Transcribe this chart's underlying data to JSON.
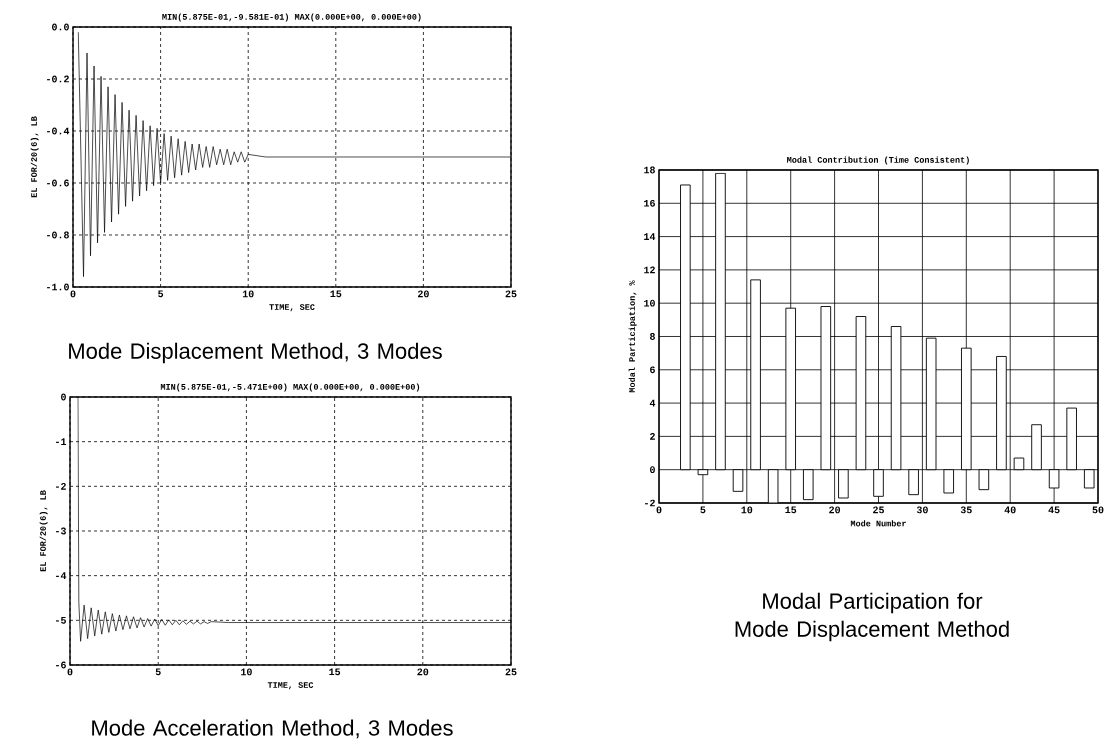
{
  "chart_data": [
    {
      "type": "line",
      "title": "MIN(5.875E-01,-9.581E-01) MAX(0.000E+00, 0.000E+00)",
      "xlabel": "TIME, SEC",
      "ylabel": "EL FOR/20(6), LB",
      "annotations": [
        "Mode Displacement Method, 3 Modes"
      ],
      "xlim": [
        0,
        25
      ],
      "ylim": [
        -1,
        0
      ],
      "xticks": [
        0,
        5,
        10,
        15,
        20,
        25
      ],
      "yticks": [
        {
          "value": -1,
          "label": "-1.0"
        },
        -0.8,
        -0.6,
        -0.4,
        -0.2,
        {
          "value": 0,
          "label": "0.0"
        }
      ],
      "grid": true,
      "series": [
        {
          "color": "#000000",
          "x": [
            0.3,
            0.6,
            0.8,
            1.0,
            1.2,
            1.4,
            1.6,
            1.8,
            2.0,
            2.2,
            2.4,
            2.6,
            2.8,
            3.0,
            3.2,
            3.4,
            3.6,
            3.8,
            4.0,
            4.2,
            4.4,
            4.6,
            4.8,
            5.0,
            5.2,
            5.4,
            5.6,
            5.8,
            6.0,
            6.2,
            6.4,
            6.6,
            6.8,
            7.0,
            7.2,
            7.4,
            7.6,
            7.8,
            8.0,
            8.2,
            8.4,
            8.6,
            8.8,
            9.0,
            9.2,
            9.4,
            9.6,
            9.8,
            10.0,
            11.0,
            25
          ],
          "values": [
            -0.02,
            -0.96,
            -0.1,
            -0.88,
            -0.15,
            -0.83,
            -0.19,
            -0.79,
            -0.23,
            -0.75,
            -0.26,
            -0.72,
            -0.29,
            -0.69,
            -0.32,
            -0.67,
            -0.34,
            -0.65,
            -0.36,
            -0.63,
            -0.38,
            -0.61,
            -0.39,
            -0.6,
            -0.41,
            -0.59,
            -0.42,
            -0.58,
            -0.43,
            -0.57,
            -0.44,
            -0.56,
            -0.45,
            -0.55,
            -0.45,
            -0.54,
            -0.46,
            -0.54,
            -0.46,
            -0.53,
            -0.47,
            -0.53,
            -0.47,
            -0.53,
            -0.48,
            -0.52,
            -0.48,
            -0.52,
            -0.49,
            -0.5,
            -0.5
          ]
        }
      ]
    },
    {
      "type": "line",
      "title": "MIN(5.875E-01,-5.471E+00) MAX(0.000E+00, 0.000E+00)",
      "xlabel": "TIME, SEC",
      "ylabel": "EL FOR/20(6), LB",
      "annotations": [
        "Mode Acceleration Method, 3 Modes"
      ],
      "xlim": [
        0,
        25
      ],
      "ylim": [
        -6,
        0
      ],
      "xticks": [
        0,
        5,
        10,
        15,
        20,
        25
      ],
      "yticks": [
        -6,
        -5,
        -4,
        -3,
        -2,
        -1,
        0
      ],
      "grid": true,
      "series": [
        {
          "color": "#000000",
          "x": [
            0.45,
            0.5,
            0.6,
            0.8,
            1.0,
            1.2,
            1.4,
            1.6,
            1.8,
            2.0,
            2.2,
            2.4,
            2.6,
            2.8,
            3.0,
            3.2,
            3.4,
            3.6,
            3.8,
            4.0,
            4.2,
            4.4,
            4.6,
            4.8,
            5.0,
            5.2,
            5.4,
            5.6,
            5.8,
            6.0,
            6.2,
            6.4,
            6.6,
            6.8,
            7.0,
            7.2,
            7.4,
            7.6,
            7.8,
            8.0,
            9.0,
            25
          ],
          "values": [
            0,
            -4.6,
            -5.47,
            -4.66,
            -5.41,
            -4.72,
            -5.35,
            -4.77,
            -5.31,
            -4.81,
            -5.27,
            -4.85,
            -5.24,
            -4.88,
            -5.21,
            -4.9,
            -5.19,
            -4.92,
            -5.17,
            -4.94,
            -5.15,
            -4.96,
            -5.13,
            -4.97,
            -5.12,
            -4.98,
            -5.11,
            -4.99,
            -5.1,
            -5.0,
            -5.1,
            -5.01,
            -5.09,
            -5.02,
            -5.08,
            -5.02,
            -5.08,
            -5.03,
            -5.07,
            -5.03,
            -5.05,
            -5.05
          ]
        }
      ]
    },
    {
      "type": "bar",
      "title": "Modal Contribution (Time Consistent)",
      "xlabel": "Mode Number",
      "ylabel": "Modal Participation, %",
      "annotations": [
        "Modal Participation for Mode Displacement Method"
      ],
      "xlim": [
        0,
        50
      ],
      "ylim": [
        -2,
        18
      ],
      "xticks": [
        0,
        5,
        10,
        15,
        20,
        25,
        30,
        35,
        40,
        45,
        50
      ],
      "yticks": [
        -2,
        0,
        2,
        4,
        6,
        8,
        10,
        12,
        14,
        16,
        18
      ],
      "grid": true,
      "x": [
        3,
        5,
        7,
        9,
        11,
        13,
        15,
        17,
        19,
        21,
        23,
        25,
        27,
        29,
        31,
        33,
        35,
        37,
        39,
        41,
        43,
        45,
        47,
        49
      ],
      "series": [
        {
          "color": "#ffffff",
          "values": [
            17.1,
            -0.3,
            17.8,
            -1.3,
            11.4,
            -2.0,
            9.7,
            -1.8,
            9.8,
            -1.7,
            9.2,
            -1.6,
            8.6,
            -1.5,
            7.9,
            -1.4,
            7.3,
            -1.2,
            6.8,
            0.7,
            2.7,
            -1.1,
            3.7,
            -1.1
          ]
        }
      ]
    }
  ]
}
